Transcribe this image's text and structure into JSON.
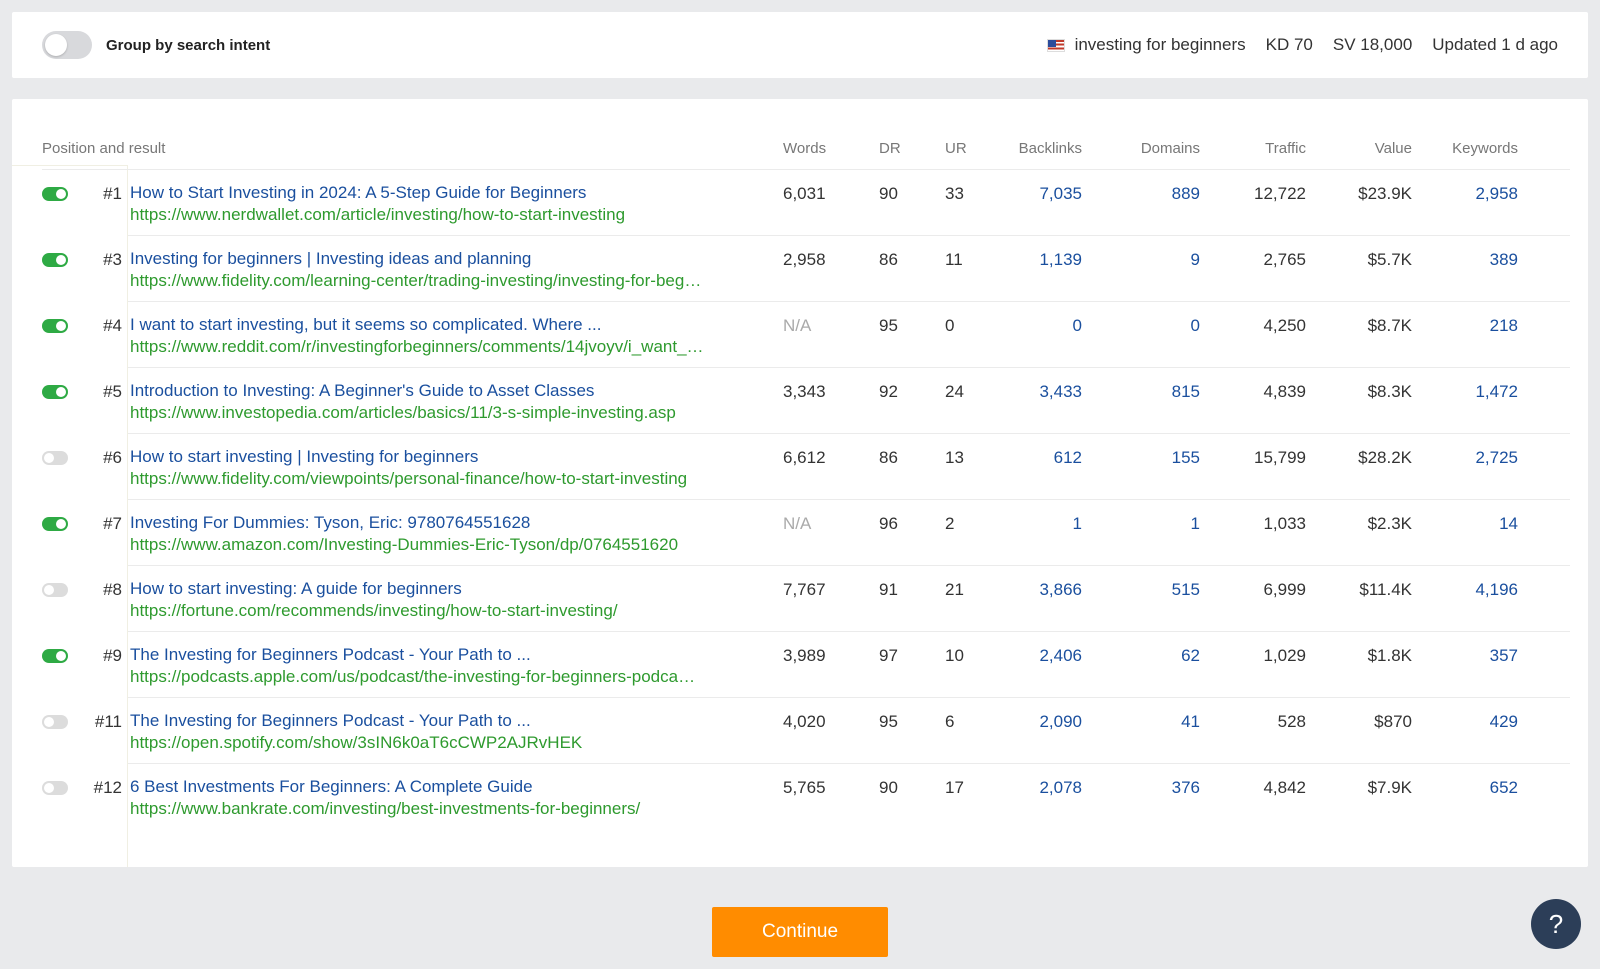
{
  "topbar": {
    "group_toggle_label": "Group by search intent",
    "keyword": "investing for beginners",
    "kd": "KD 70",
    "sv": "SV 18,000",
    "updated": "Updated 1 d ago"
  },
  "table": {
    "headers": {
      "position": "Position and result",
      "words": "Words",
      "dr": "DR",
      "ur": "UR",
      "backlinks": "Backlinks",
      "domains": "Domains",
      "traffic": "Traffic",
      "value": "Value",
      "keywords": "Keywords"
    },
    "rows": [
      {
        "on": true,
        "pos": "#1",
        "title": "How to Start Investing in 2024: A 5-Step Guide for Beginners",
        "url": "https://www.nerdwallet.com/article/investing/how-to-start-investing",
        "words": "6,031",
        "dr": "90",
        "ur": "33",
        "backlinks": "7,035",
        "domains": "889",
        "traffic": "12,722",
        "value": "$23.9K",
        "keywords": "2,958"
      },
      {
        "on": true,
        "pos": "#3",
        "title": "Investing for beginners | Investing ideas and planning",
        "url": "https://www.fidelity.com/learning-center/trading-investing/investing-for-beg…",
        "words": "2,958",
        "dr": "86",
        "ur": "11",
        "backlinks": "1,139",
        "domains": "9",
        "traffic": "2,765",
        "value": "$5.7K",
        "keywords": "389"
      },
      {
        "on": true,
        "pos": "#4",
        "title": "I want to start investing, but it seems so complicated. Where ...",
        "url": "https://www.reddit.com/r/investingforbeginners/comments/14jvoyv/i_want_…",
        "words": "N/A",
        "dr": "95",
        "ur": "0",
        "backlinks": "0",
        "domains": "0",
        "traffic": "4,250",
        "value": "$8.7K",
        "keywords": "218"
      },
      {
        "on": true,
        "pos": "#5",
        "title": "Introduction to Investing: A Beginner's Guide to Asset Classes",
        "url": "https://www.investopedia.com/articles/basics/11/3-s-simple-investing.asp",
        "words": "3,343",
        "dr": "92",
        "ur": "24",
        "backlinks": "3,433",
        "domains": "815",
        "traffic": "4,839",
        "value": "$8.3K",
        "keywords": "1,472"
      },
      {
        "on": false,
        "pos": "#6",
        "title": "How to start investing | Investing for beginners",
        "url": "https://www.fidelity.com/viewpoints/personal-finance/how-to-start-investing",
        "words": "6,612",
        "dr": "86",
        "ur": "13",
        "backlinks": "612",
        "domains": "155",
        "traffic": "15,799",
        "value": "$28.2K",
        "keywords": "2,725"
      },
      {
        "on": true,
        "pos": "#7",
        "title": "Investing For Dummies: Tyson, Eric: 9780764551628",
        "url": "https://www.amazon.com/Investing-Dummies-Eric-Tyson/dp/0764551620",
        "words": "N/A",
        "dr": "96",
        "ur": "2",
        "backlinks": "1",
        "domains": "1",
        "traffic": "1,033",
        "value": "$2.3K",
        "keywords": "14"
      },
      {
        "on": false,
        "pos": "#8",
        "title": "How to start investing: A guide for beginners",
        "url": "https://fortune.com/recommends/investing/how-to-start-investing/",
        "words": "7,767",
        "dr": "91",
        "ur": "21",
        "backlinks": "3,866",
        "domains": "515",
        "traffic": "6,999",
        "value": "$11.4K",
        "keywords": "4,196"
      },
      {
        "on": true,
        "pos": "#9",
        "title": "The Investing for Beginners Podcast - Your Path to ...",
        "url": "https://podcasts.apple.com/us/podcast/the-investing-for-beginners-podca…",
        "words": "3,989",
        "dr": "97",
        "ur": "10",
        "backlinks": "2,406",
        "domains": "62",
        "traffic": "1,029",
        "value": "$1.8K",
        "keywords": "357"
      },
      {
        "on": false,
        "pos": "#11",
        "title": "The Investing for Beginners Podcast - Your Path to ...",
        "url": "https://open.spotify.com/show/3sIN6k0aT6cCWP2AJRvHEK",
        "words": "4,020",
        "dr": "95",
        "ur": "6",
        "backlinks": "2,090",
        "domains": "41",
        "traffic": "528",
        "value": "$870",
        "keywords": "429"
      },
      {
        "on": false,
        "pos": "#12",
        "title": "6 Best Investments For Beginners: A Complete Guide",
        "url": "https://www.bankrate.com/investing/best-investments-for-beginners/",
        "words": "5,765",
        "dr": "90",
        "ur": "17",
        "backlinks": "2,078",
        "domains": "376",
        "traffic": "4,842",
        "value": "$7.9K",
        "keywords": "652"
      }
    ]
  },
  "footer": {
    "continue_label": "Continue",
    "help_label": "?"
  }
}
